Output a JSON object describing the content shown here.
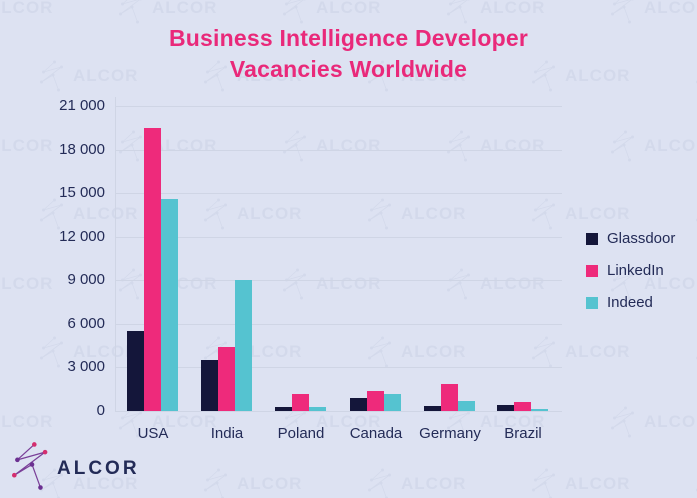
{
  "title": {
    "line1": "Business Intelligence Developer",
    "line2": "Vacancies Worldwide"
  },
  "watermark_text": "ALCOR",
  "logo_text": "ALCOR",
  "colors": {
    "background": "#dde2f2",
    "title": "#e9297a",
    "text": "#232b57",
    "gridline": "#cfd5e5",
    "watermark": "#ccd3e6",
    "glassdoor": "#14163a",
    "linkedin": "#ee2a7b",
    "indeed": "#55c3d0",
    "logo_line": "#7a3f98",
    "logo_dot_pink": "#d42e6f",
    "logo_dot_purple": "#6b3091"
  },
  "legend": [
    {
      "label": "Glassdoor",
      "color": "#14163a"
    },
    {
      "label": "LinkedIn",
      "color": "#ee2a7b"
    },
    {
      "label": "Indeed",
      "color": "#55c3d0"
    }
  ],
  "chart_data": {
    "type": "bar",
    "title": "Business Intelligence Developer Vacancies Worldwide",
    "categories": [
      "USA",
      "India",
      "Poland",
      "Canada",
      "Germany",
      "Brazil"
    ],
    "series": [
      {
        "name": "Glassdoor",
        "color": "#14163a",
        "values": [
          5500,
          3500,
          250,
          900,
          350,
          400
        ]
      },
      {
        "name": "LinkedIn",
        "color": "#ee2a7b",
        "values": [
          19500,
          4400,
          1150,
          1350,
          1850,
          600
        ]
      },
      {
        "name": "Indeed",
        "color": "#55c3d0",
        "values": [
          14600,
          9000,
          250,
          1150,
          700,
          120
        ]
      }
    ],
    "xlabel": "",
    "ylabel": "",
    "ylim": [
      0,
      21000
    ],
    "ytick_step": 3000,
    "ytick_labels": [
      "0",
      "3 000",
      "6 000",
      "9 000",
      "12 000",
      "15 000",
      "18 000",
      "21 000"
    ],
    "grid": true,
    "legend_position": "right"
  }
}
